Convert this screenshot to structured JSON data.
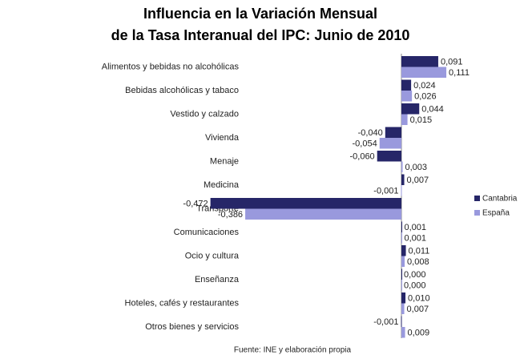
{
  "chart_data": {
    "type": "hbar",
    "title": [
      "Influencia en la Variación Mensual",
      "de la Tasa Interanual del IPC: Junio de 2010"
    ],
    "source": "Fuente: INE y elaboración propia",
    "categories": [
      "Alimentos y bebidas no alcohólicas",
      "Bebidas alcohólicas y tabaco",
      "Vestido y calzado",
      "Vivienda",
      "Menaje",
      "Medicina",
      "Transporte",
      "Comunicaciones",
      "Ocio y cultura",
      "Enseñanza",
      "Hoteles, cafés y restaurantes",
      "Otros bienes y servicios"
    ],
    "series": [
      {
        "name": "Cantabria",
        "color": "#262668",
        "values": [
          0.091,
          0.024,
          0.044,
          -0.04,
          -0.06,
          0.007,
          -0.472,
          0.001,
          0.011,
          0.0,
          0.01,
          -0.001
        ],
        "value_labels": [
          "0,091",
          "0,024",
          "0,044",
          "-0,040",
          "-0,060",
          "0,007",
          "-0,472",
          "0,001",
          "0,011",
          "0,000",
          "0,010",
          "-0,001"
        ]
      },
      {
        "name": "España",
        "color": "#9999dd",
        "values": [
          0.111,
          0.026,
          0.015,
          -0.054,
          0.003,
          -0.001,
          -0.386,
          0.001,
          0.008,
          0.0,
          0.007,
          0.009
        ],
        "value_labels": [
          "0,111",
          "0,026",
          "0,015",
          "-0,054",
          "0,003",
          "-0,001",
          "-0,386",
          "0,001",
          "0,008",
          "0,000",
          "0,007",
          "0,009"
        ]
      }
    ],
    "legend": "right"
  }
}
